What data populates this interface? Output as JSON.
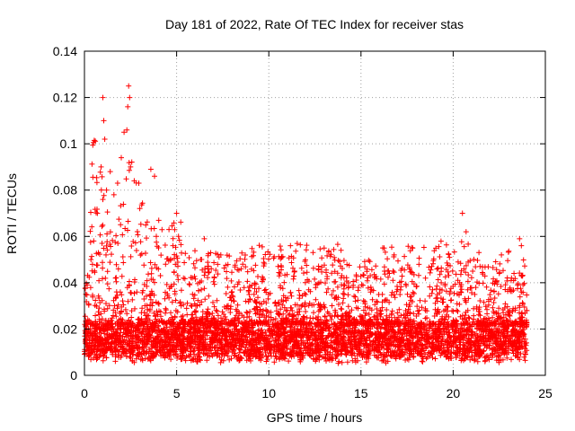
{
  "chart_data": {
    "type": "scatter",
    "title": "Day 181 of 2022, Rate Of TEC Index for receiver stas",
    "xlabel": "GPS time / hours",
    "ylabel": "ROTI / TECUs",
    "xlim": [
      0,
      25
    ],
    "ylim": [
      0,
      0.14
    ],
    "xticks": [
      0,
      5,
      10,
      15,
      20,
      25
    ],
    "yticks": [
      0,
      0.02,
      0.04,
      0.06,
      0.08,
      0.1,
      0.12,
      0.14
    ],
    "xtick_labels": [
      "0",
      "5",
      "10",
      "15",
      "20",
      "25"
    ],
    "ytick_labels": [
      "0",
      "0.02",
      "0.04",
      "0.06",
      "0.08",
      "0.1",
      "0.12",
      "0.14"
    ],
    "grid": true,
    "marker": "+",
    "series": [
      {
        "name": "ROTI",
        "color": "#ff0000",
        "band_low": 0.008,
        "band_high": 0.022,
        "notable_points": [
          {
            "x": 0.35,
            "y": 0.05
          },
          {
            "x": 0.5,
            "y": 0.058
          },
          {
            "x": 0.7,
            "y": 0.07
          },
          {
            "x": 0.9,
            "y": 0.09
          },
          {
            "x": 1.0,
            "y": 0.12
          },
          {
            "x": 1.05,
            "y": 0.11
          },
          {
            "x": 1.1,
            "y": 0.102
          },
          {
            "x": 1.2,
            "y": 0.08
          },
          {
            "x": 1.4,
            "y": 0.088
          },
          {
            "x": 1.6,
            "y": 0.078
          },
          {
            "x": 1.8,
            "y": 0.083
          },
          {
            "x": 2.0,
            "y": 0.094
          },
          {
            "x": 2.15,
            "y": 0.105
          },
          {
            "x": 2.3,
            "y": 0.106
          },
          {
            "x": 2.35,
            "y": 0.116
          },
          {
            "x": 2.4,
            "y": 0.125
          },
          {
            "x": 2.45,
            "y": 0.12
          },
          {
            "x": 2.5,
            "y": 0.09
          },
          {
            "x": 2.7,
            "y": 0.084
          },
          {
            "x": 3.0,
            "y": 0.072
          },
          {
            "x": 3.6,
            "y": 0.089
          },
          {
            "x": 3.8,
            "y": 0.086
          },
          {
            "x": 3.9,
            "y": 0.06
          },
          {
            "x": 4.4,
            "y": 0.048
          },
          {
            "x": 4.8,
            "y": 0.056
          },
          {
            "x": 5.0,
            "y": 0.07
          },
          {
            "x": 5.1,
            "y": 0.06
          },
          {
            "x": 6.5,
            "y": 0.059
          },
          {
            "x": 7.4,
            "y": 0.052
          },
          {
            "x": 8.5,
            "y": 0.046
          },
          {
            "x": 10.5,
            "y": 0.047
          },
          {
            "x": 11.4,
            "y": 0.045
          },
          {
            "x": 12.4,
            "y": 0.053
          },
          {
            "x": 12.7,
            "y": 0.046
          },
          {
            "x": 13.0,
            "y": 0.055
          },
          {
            "x": 15.5,
            "y": 0.043
          },
          {
            "x": 16.8,
            "y": 0.052
          },
          {
            "x": 17.8,
            "y": 0.055
          },
          {
            "x": 18.5,
            "y": 0.042
          },
          {
            "x": 20.5,
            "y": 0.07
          },
          {
            "x": 20.7,
            "y": 0.062
          },
          {
            "x": 21.4,
            "y": 0.053
          },
          {
            "x": 22.5,
            "y": 0.044
          },
          {
            "x": 23.3,
            "y": 0.044
          },
          {
            "x": 23.6,
            "y": 0.059
          },
          {
            "x": 23.7,
            "y": 0.056
          }
        ]
      }
    ]
  }
}
